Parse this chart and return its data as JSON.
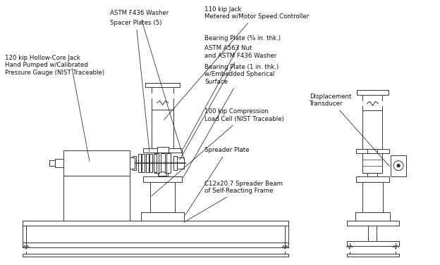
{
  "bg_color": "#ffffff",
  "line_color": "#333333",
  "text_color": "#111111",
  "font_size": 6.2,
  "labels": {
    "astm_washer": "ASTM F436 Washer",
    "spacer_plates": "Spacer Plates (5)",
    "hollow_jack": "120 kip Hollow-Core Jack\nHand Pumped w/Calibrated\nPressure Gauge (NIST Traceable)",
    "jack_110": "110 kip Jack\nMetered w/Motor Speed Controller",
    "bearing_plate_58": "Bearing Plate (⅝ in. thk.)",
    "nut_washer": "ASTM A563 Nut\nand ASTM F436 Washer",
    "bearing_plate_1": "Bearing Plate (1 in. thk.)\nw/Embedded Spherical\nSurface",
    "load_cell": "100 kip Compression\nLoad Cell (NIST Traceable)",
    "spreader_plate": "Spreader Plate",
    "spreader_beam": "C12x20.7 Spreader Beam\nof Self-Reacting Frame",
    "disp_transducer": "Displacement\nTransducer"
  }
}
